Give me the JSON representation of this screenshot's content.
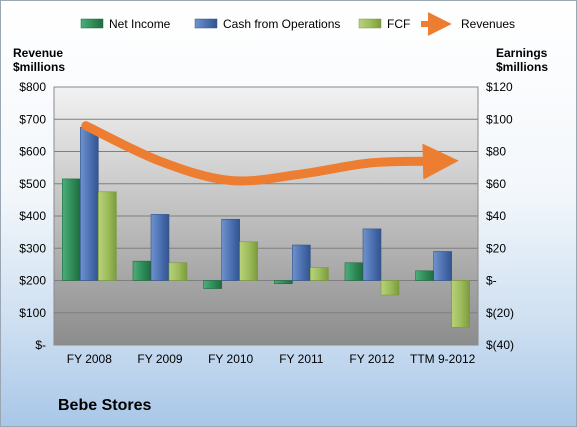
{
  "company_name": "Bebe Stores",
  "colors": {
    "net_income": "#2e8b57",
    "cash_ops": "#4a6fb0",
    "fcf": "#9bbb59",
    "revenues": "#ed7d31",
    "plot_bg_top": "#f2f2f2",
    "plot_bg_bottom": "#8c8c8c"
  },
  "chart_data": {
    "type": "bar",
    "categories": [
      "FY 2008",
      "FY 2009",
      "FY 2010",
      "FY 2011",
      "FY 2012",
      "TTM 9-2012"
    ],
    "left_axis": {
      "title_line1": "Revenue",
      "title_line2": "$millions",
      "ticks": [
        "$-",
        "$100",
        "$200",
        "$300",
        "$400",
        "$500",
        "$600",
        "$700",
        "$800"
      ],
      "ylim": [
        0,
        800
      ]
    },
    "right_axis": {
      "title_line1": "Earnings",
      "title_line2": "$millions",
      "ticks": [
        "$(40)",
        "$(20)",
        "$-",
        "$20",
        "$40",
        "$60",
        "$80",
        "$100",
        "$120"
      ],
      "ylim": [
        -40,
        120
      ]
    },
    "series": [
      {
        "name": "Net Income",
        "axis": "right",
        "values": [
          63,
          12,
          -5,
          -2,
          11,
          6
        ]
      },
      {
        "name": "Cash from Operations",
        "axis": "right",
        "values": [
          95,
          41,
          38,
          22,
          32,
          18
        ]
      },
      {
        "name": "FCF",
        "axis": "right",
        "values": [
          55,
          11,
          24,
          8,
          -9,
          -29
        ]
      },
      {
        "name": "Revenues",
        "axis": "left",
        "type": "line",
        "values": [
          680,
          570,
          510,
          530,
          565,
          570
        ]
      }
    ],
    "legend_position": "top",
    "grid": true
  }
}
